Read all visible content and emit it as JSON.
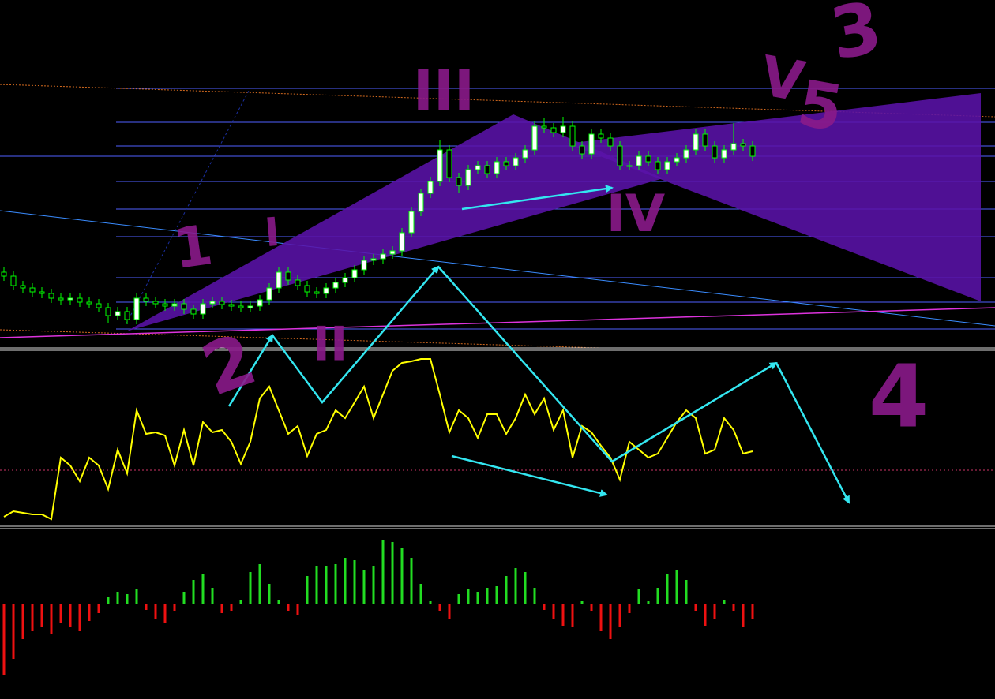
{
  "chart_data": [
    {
      "type": "candlestick",
      "ylim": [
        0,
        440
      ],
      "up_color": "#ffffff",
      "down_color": "#000000",
      "wick_color": "#00ff00",
      "open": [
        95,
        90,
        78,
        75,
        70,
        68,
        62,
        60,
        62,
        57,
        55,
        50,
        40,
        45,
        35,
        62,
        58,
        55,
        52,
        55,
        48,
        42,
        55,
        58,
        54,
        52,
        50,
        52,
        60,
        75,
        95,
        85,
        78,
        70,
        68,
        75,
        82,
        88,
        98,
        110,
        112,
        118,
        122,
        145,
        172,
        195,
        210,
        250,
        215,
        205,
        225,
        230,
        220,
        235,
        230,
        240,
        250,
        280,
        278,
        272,
        280,
        255,
        245,
        270,
        265,
        255,
        230,
        230,
        242,
        235,
        225,
        235,
        240,
        250,
        270,
        255,
        240,
        250,
        258,
        255
      ],
      "high": [
        101,
        96,
        84,
        81,
        76,
        74,
        68,
        68,
        68,
        63,
        61,
        56,
        51,
        51,
        68,
        68,
        64,
        61,
        61,
        61,
        54,
        61,
        64,
        64,
        60,
        58,
        58,
        66,
        81,
        101,
        101,
        91,
        84,
        76,
        81,
        88,
        94,
        104,
        116,
        118,
        124,
        128,
        151,
        178,
        201,
        216,
        262,
        256,
        221,
        231,
        236,
        236,
        241,
        241,
        246,
        256,
        286,
        290,
        284,
        292,
        286,
        261,
        276,
        276,
        271,
        261,
        236,
        248,
        248,
        241,
        241,
        246,
        256,
        276,
        276,
        261,
        256,
        284,
        264,
        261
      ],
      "low": [
        84,
        72,
        69,
        64,
        62,
        56,
        54,
        54,
        51,
        49,
        44,
        30,
        34,
        29,
        29,
        52,
        49,
        46,
        46,
        42,
        36,
        36,
        49,
        48,
        46,
        44,
        44,
        46,
        54,
        69,
        79,
        72,
        64,
        62,
        62,
        69,
        76,
        82,
        92,
        104,
        106,
        112,
        116,
        139,
        166,
        189,
        204,
        209,
        195,
        199,
        219,
        214,
        214,
        224,
        224,
        234,
        244,
        272,
        266,
        266,
        249,
        239,
        239,
        259,
        249,
        224,
        224,
        224,
        229,
        219,
        219,
        229,
        234,
        244,
        249,
        234,
        234,
        244,
        249,
        236
      ],
      "close": [
        90,
        78,
        75,
        70,
        68,
        62,
        60,
        62,
        57,
        55,
        50,
        40,
        45,
        35,
        62,
        58,
        55,
        52,
        55,
        48,
        42,
        55,
        58,
        54,
        52,
        50,
        52,
        60,
        75,
        95,
        85,
        78,
        70,
        68,
        75,
        82,
        88,
        98,
        110,
        112,
        118,
        122,
        145,
        172,
        195,
        210,
        250,
        215,
        205,
        225,
        230,
        220,
        235,
        230,
        240,
        250,
        280,
        278,
        272,
        280,
        255,
        245,
        270,
        265,
        255,
        230,
        230,
        242,
        235,
        225,
        235,
        240,
        250,
        270,
        255,
        240,
        250,
        258,
        255,
        242
      ]
    },
    {
      "type": "line",
      "ylim": [
        0,
        220
      ],
      "color": "#ffff00",
      "values": [
        10,
        17,
        15,
        13,
        13,
        7,
        85,
        75,
        55,
        85,
        75,
        45,
        95,
        65,
        145,
        115,
        117,
        113,
        75,
        120,
        75,
        130,
        117,
        120,
        105,
        77,
        105,
        160,
        175,
        145,
        115,
        125,
        87,
        115,
        120,
        145,
        135,
        155,
        175,
        135,
        165,
        195,
        205,
        207,
        210,
        210,
        165,
        117,
        145,
        135,
        110,
        140,
        140,
        115,
        135,
        165,
        140,
        160,
        120,
        145,
        85,
        125,
        117,
        100,
        85,
        57,
        105,
        95,
        85,
        90,
        110,
        130,
        145,
        135,
        90,
        95,
        135,
        120,
        90,
        93
      ]
    },
    {
      "type": "bar",
      "ylim": [
        -121,
        95
      ],
      "up_color": "#22dd22",
      "down_color": "#ee1111",
      "values": [
        -90,
        -70,
        -45,
        -35,
        -30,
        -38,
        -25,
        -30,
        -35,
        -22,
        -12,
        8,
        15,
        12,
        18,
        -8,
        -20,
        -25,
        -10,
        15,
        30,
        38,
        20,
        -12,
        -10,
        5,
        40,
        50,
        25,
        5,
        -10,
        -15,
        35,
        48,
        48,
        50,
        58,
        55,
        42,
        48,
        80,
        78,
        70,
        58,
        25,
        3,
        -10,
        -20,
        12,
        18,
        15,
        20,
        22,
        35,
        45,
        40,
        20,
        -8,
        -20,
        -28,
        -30,
        3,
        -10,
        -35,
        -45,
        -30,
        -12,
        18,
        3,
        20,
        38,
        42,
        30,
        -10,
        -28,
        -20,
        5,
        -10,
        -30,
        -20
      ]
    }
  ],
  "annotations": [
    "1",
    "I",
    "2",
    "II",
    "III",
    "IV",
    "3",
    "V",
    "5",
    "4"
  ]
}
